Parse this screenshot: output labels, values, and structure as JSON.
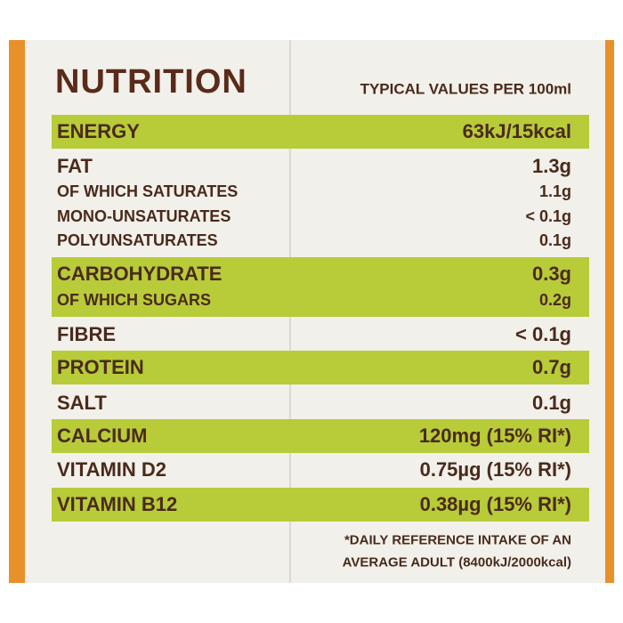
{
  "header": {
    "title": "NUTRITION",
    "subtitle": "TYPICAL VALUES PER 100ml"
  },
  "groups": [
    {
      "highlight": true,
      "rows": [
        {
          "label": "ENERGY",
          "value": "63kJ/15kcal"
        }
      ]
    },
    {
      "highlight": false,
      "rows": [
        {
          "label": "FAT",
          "value": "1.3g"
        },
        {
          "label": "OF WHICH SATURATES",
          "value": "1.1g"
        },
        {
          "label": "MONO-UNSATURATES",
          "value": "< 0.1g"
        },
        {
          "label": "POLYUNSATURATES",
          "value": "0.1g"
        }
      ]
    },
    {
      "highlight": true,
      "rows": [
        {
          "label": "CARBOHYDRATE",
          "value": "0.3g"
        },
        {
          "label": "OF WHICH SUGARS",
          "value": "0.2g"
        }
      ]
    },
    {
      "highlight": false,
      "rows": [
        {
          "label": "FIBRE",
          "value": "< 0.1g"
        }
      ]
    },
    {
      "highlight": true,
      "rows": [
        {
          "label": "PROTEIN",
          "value": "0.7g"
        }
      ]
    },
    {
      "highlight": false,
      "rows": [
        {
          "label": "SALT",
          "value": "0.1g"
        }
      ]
    },
    {
      "highlight": true,
      "rows": [
        {
          "label": "CALCIUM",
          "value": "120mg (15% RI*)"
        }
      ]
    },
    {
      "highlight": false,
      "rows": [
        {
          "label": "VITAMIN D2",
          "value": "0.75µg (15% RI*)"
        }
      ]
    },
    {
      "highlight": true,
      "rows": [
        {
          "label": "VITAMIN B12",
          "value": "0.38µg (15% RI*)"
        }
      ]
    }
  ],
  "footnote": [
    "*DAILY REFERENCE INTAKE OF AN",
    "AVERAGE ADULT (8400kJ/2000kcal)"
  ]
}
